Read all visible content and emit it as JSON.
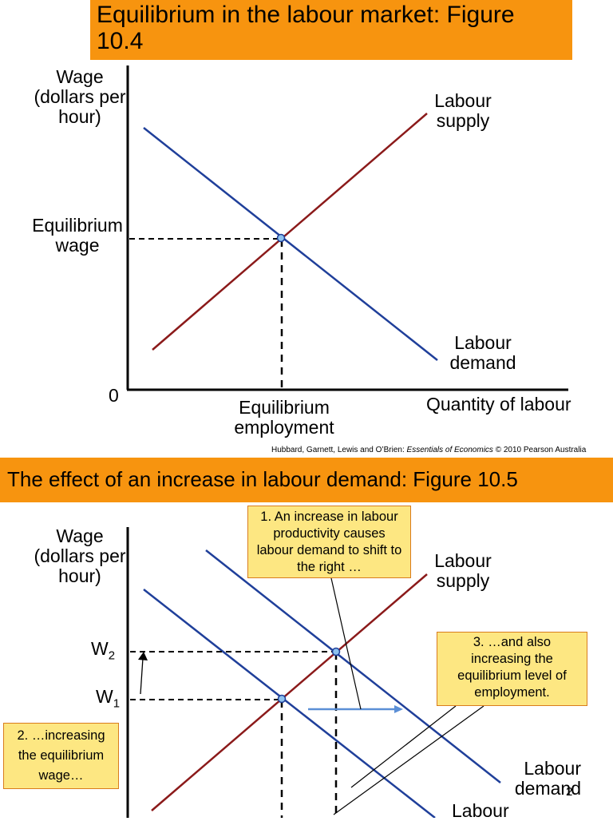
{
  "figure1": {
    "title": "Equilibrium in the labour market: Figure 10.4",
    "y_axis_label": "Wage (dollars per hour)",
    "x_axis_label": "Quantity of labour",
    "origin_label": "0",
    "supply_label": "Labour supply",
    "demand_label": "Labour demand",
    "eq_wage_label": "Equilibrium wage",
    "eq_employment_label": "Equilibrium employment",
    "credit": {
      "authors": "Hubbard, Garnett, Lewis and O’Brien: ",
      "book": "Essentials of Economics",
      "rest": " © 2010 Pearson Australia"
    }
  },
  "figure2": {
    "title": "The effect of an increase in labour demand: Figure 10.5",
    "y_axis_label": "Wage (dollars per hour)",
    "supply_label": "Labour supply",
    "demand2_label": "Labour demand",
    "demand2_sub": "2",
    "demand1_label": "Labour",
    "w2": "W",
    "w2_sub": "2",
    "w1": "W",
    "w1_sub": "1",
    "note1": "1. An increase in labour productivity causes labour demand to shift to the right …",
    "note2": "2. …increasing the equilibrium wage…",
    "note3": "3. …and also increasing the equilibrium level of employment."
  },
  "colors": {
    "banner": "#f7940f",
    "supply": "#8b1a1a",
    "demand": "#1f3f9a",
    "shift_arrow": "#5b8fd6",
    "note_fill": "#fde782",
    "note_border": "#d97c1c"
  }
}
